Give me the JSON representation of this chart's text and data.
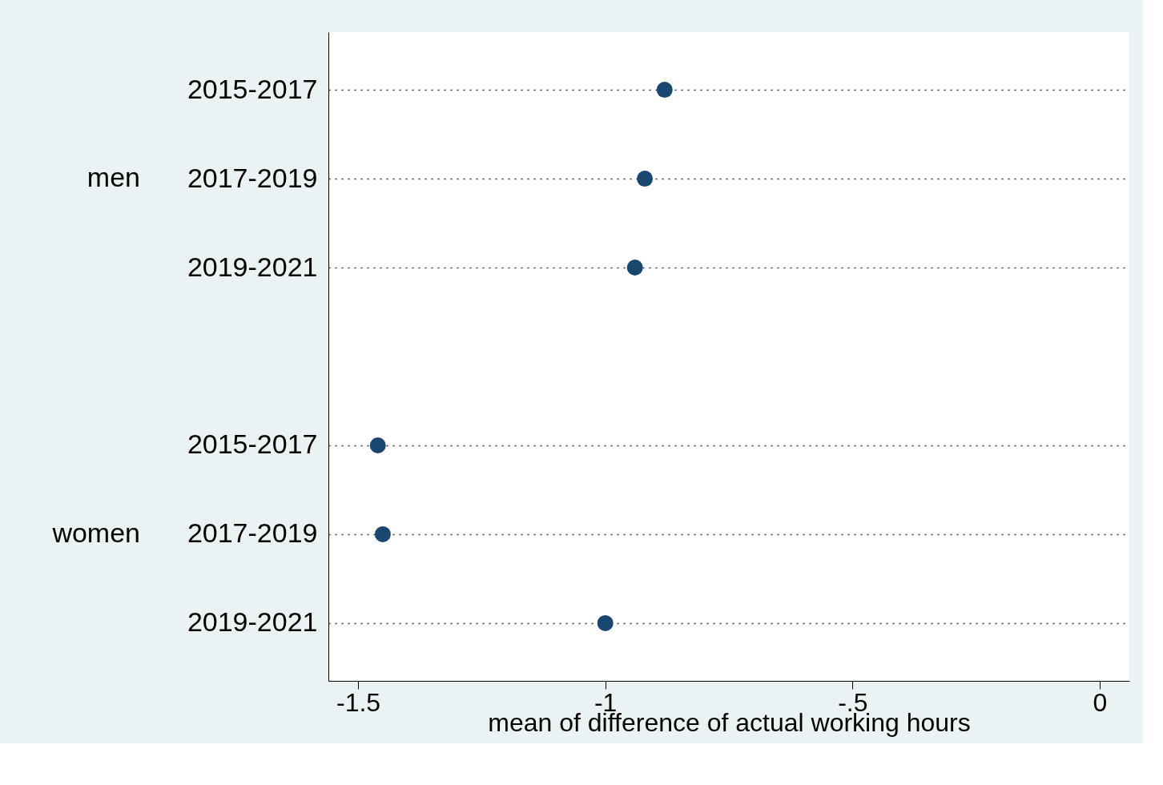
{
  "chart_data": {
    "type": "scatter",
    "orientation": "horizontal",
    "xlabel": "mean of difference of actual working hours",
    "categories": [
      "2015-2017",
      "2017-2019",
      "2019-2021",
      null,
      "2015-2017",
      "2017-2019",
      "2019-2021"
    ],
    "series": [
      {
        "color": "#1a476f",
        "values": [
          -0.88,
          -0.92,
          -0.94,
          null,
          null,
          null,
          null
        ]
      },
      {
        "color": "#1a476f",
        "values": [
          null,
          null,
          null,
          null,
          -1.46,
          -1.45,
          -1.0
        ]
      }
    ],
    "annotations": [
      "men",
      "women"
    ],
    "marker": "circle",
    "grid": "y",
    "xlim": [
      -1.56,
      0.06
    ],
    "xticks": [
      -1.5,
      -1,
      {
        "value": -0.5,
        "label": "-.5"
      },
      0
    ]
  }
}
